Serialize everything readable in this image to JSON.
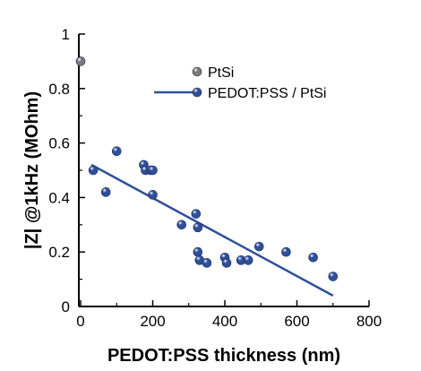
{
  "chart_data": {
    "type": "scatter",
    "xlabel": "PEDOT:PSS thickness (nm)",
    "ylabel": "|Z| @1kHz (MOhm)",
    "xlim": [
      -5,
      800
    ],
    "ylim": [
      0,
      1
    ],
    "x_ticks": [
      "0",
      "200",
      "400",
      "600",
      "800"
    ],
    "y_ticks": [
      "0",
      "0.2",
      "0.4",
      "0.6",
      "0.8",
      "1"
    ],
    "legend_position": "top-right",
    "series": [
      {
        "name": "PtSi",
        "color": "#7a7a7a",
        "points": [
          [
            0,
            0.9
          ]
        ]
      },
      {
        "name": "PEDOT:PSS / PtSi",
        "color": "#2e4f9a",
        "points": [
          [
            35,
            0.5
          ],
          [
            70,
            0.42
          ],
          [
            100,
            0.57
          ],
          [
            175,
            0.52
          ],
          [
            180,
            0.5
          ],
          [
            195,
            0.5
          ],
          [
            200,
            0.5
          ],
          [
            200,
            0.41
          ],
          [
            280,
            0.3
          ],
          [
            320,
            0.34
          ],
          [
            325,
            0.29
          ],
          [
            325,
            0.2
          ],
          [
            330,
            0.17
          ],
          [
            350,
            0.16
          ],
          [
            400,
            0.18
          ],
          [
            405,
            0.16
          ],
          [
            445,
            0.17
          ],
          [
            465,
            0.17
          ],
          [
            495,
            0.22
          ],
          [
            570,
            0.2
          ],
          [
            645,
            0.18
          ],
          [
            700,
            0.11
          ]
        ],
        "fit": [
          [
            30,
            0.52
          ],
          [
            700,
            0.04
          ]
        ]
      }
    ]
  }
}
